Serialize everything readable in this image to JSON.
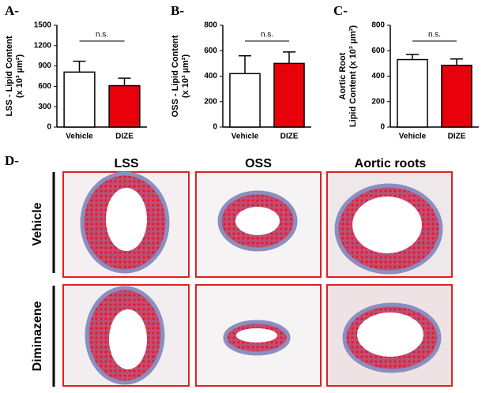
{
  "chart_data": [
    {
      "type": "bar",
      "panel": "A-",
      "categories": [
        "Vehicle",
        "DIZE"
      ],
      "values": [
        810,
        610
      ],
      "errors": [
        160,
        110
      ],
      "colors": [
        "#ffffff",
        "#e8000b"
      ],
      "ylabel": [
        "LSS - Lipid Content",
        "(x 10³ µm²)"
      ],
      "ylim": [
        0,
        1500
      ],
      "yticks": [
        0,
        300,
        600,
        900,
        1200,
        1500
      ],
      "annotation": "n.s."
    },
    {
      "type": "bar",
      "panel": "B-",
      "categories": [
        "Vehicle",
        "DIZE"
      ],
      "values": [
        420,
        500
      ],
      "errors": [
        140,
        90
      ],
      "colors": [
        "#ffffff",
        "#e8000b"
      ],
      "ylabel": [
        "OSS - Lipid Content",
        "(x 10³ µm²)"
      ],
      "ylim": [
        0,
        800
      ],
      "yticks": [
        0,
        200,
        400,
        600,
        800
      ],
      "annotation": "n.s."
    },
    {
      "type": "bar",
      "panel": "C-",
      "categories": [
        "Vehicle",
        "DIZE"
      ],
      "values": [
        530,
        485
      ],
      "errors": [
        40,
        50
      ],
      "colors": [
        "#ffffff",
        "#e8000b"
      ],
      "ylabel": [
        "Aortic Root",
        "Lipid Content (x 10³ µm²)"
      ],
      "ylim": [
        0,
        800
      ],
      "yticks": [
        0,
        200,
        400,
        600,
        800
      ],
      "annotation": "n.s."
    }
  ],
  "panel_d": {
    "label": "D-",
    "columns": [
      "LSS",
      "OSS",
      "Aortic roots"
    ],
    "rows": [
      "Vehicle",
      "Diminazene"
    ]
  }
}
